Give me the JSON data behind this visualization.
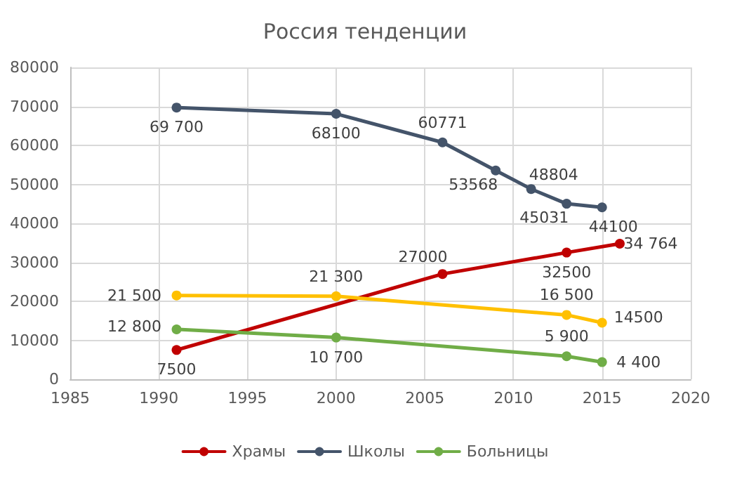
{
  "chart_data": {
    "type": "line",
    "title": "Россия тенденции",
    "xlim": [
      1985,
      2020
    ],
    "xticks": [
      1985,
      1990,
      1995,
      2000,
      2005,
      2010,
      2015,
      2020
    ],
    "ylim": [
      0,
      80000
    ],
    "yticks": [
      0,
      10000,
      20000,
      30000,
      40000,
      50000,
      60000,
      70000,
      80000
    ],
    "series": [
      {
        "name": "Храмы",
        "color": "#c00000",
        "x": [
          1991,
          2006,
          2013,
          2016
        ],
        "values": [
          7500,
          27000,
          32500,
          34764
        ],
        "value_labels": [
          "7500",
          "27000",
          "32500",
          "34 764"
        ]
      },
      {
        "name": "Школы",
        "color": "#44546a",
        "x": [
          1991,
          2000,
          2006,
          2009,
          2011,
          2013,
          2015
        ],
        "values": [
          69700,
          68100,
          60771,
          53568,
          48804,
          45031,
          44100
        ],
        "value_labels": [
          "69 700",
          "68100",
          "60771",
          "53568",
          "48804",
          "45031",
          "44100"
        ]
      },
      {
        "name": "Больницы",
        "color": "#70ad47",
        "x": [
          1991,
          2000,
          2013,
          2015
        ],
        "values": [
          12800,
          10700,
          5900,
          4400
        ],
        "value_labels": [
          "12 800",
          "10 700",
          "5 900",
          "4 400"
        ]
      },
      {
        "color": "#ffc000",
        "x": [
          1991,
          2000,
          2013,
          2015
        ],
        "values": [
          21500,
          21300,
          16500,
          14500
        ],
        "value_labels": [
          "21 500",
          "21 300",
          "16 500",
          "14500"
        ]
      }
    ],
    "grid": true,
    "legend": "bottom",
    "marker": "circle",
    "line_style": "solid"
  }
}
